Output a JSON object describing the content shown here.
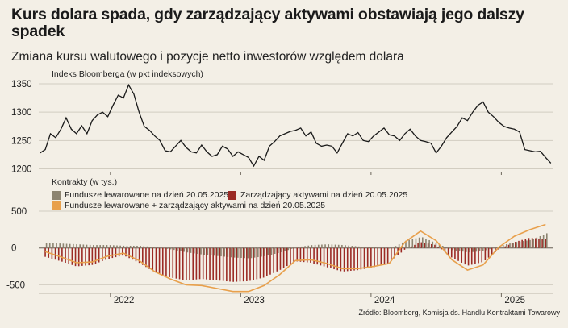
{
  "title": "Kurs dolara spada, gdy zarządzający aktywami obstawiają jego dalszy spadek",
  "subtitle": "Zmiana kursu walutowego i pozycje netto inwestorów względem dolara",
  "source": "Źródło: Bloomberg, Komisja ds. Handlu Kontraktami Towarowy",
  "colors": {
    "background": "#f3efe6",
    "dxy_line": "#1a1a1a",
    "leveraged": "#8c8470",
    "asset_managers": "#9b2a24",
    "combined": "#e8a04c",
    "grid": "#d2cdc1"
  },
  "chart_data": [
    {
      "type": "line",
      "ylabel": "Indeks Bloomberga (w pkt indeksowych)",
      "ylim": [
        1195,
        1360
      ],
      "yticks": [
        1200,
        1250,
        1300,
        1350
      ],
      "grid": true,
      "series": [
        {
          "x": [
            2021.46,
            2021.5,
            2021.54,
            2021.58,
            2021.62,
            2021.66,
            2021.7,
            2021.74,
            2021.78,
            2021.82,
            2021.86,
            2021.9,
            2021.94,
            2021.98,
            2022.02,
            2022.06,
            2022.1,
            2022.14,
            2022.18,
            2022.22,
            2022.26,
            2022.3,
            2022.34,
            2022.38,
            2022.42,
            2022.46,
            2022.5,
            2022.54,
            2022.58,
            2022.62,
            2022.66,
            2022.7,
            2022.74,
            2022.78,
            2022.82,
            2022.86,
            2022.9,
            2022.94,
            2022.98,
            2023.02,
            2023.06,
            2023.1,
            2023.14,
            2023.18,
            2023.22,
            2023.26,
            2023.3,
            2023.34,
            2023.38,
            2023.42,
            2023.46,
            2023.5,
            2023.54,
            2023.58,
            2023.62,
            2023.66,
            2023.7,
            2023.74,
            2023.78,
            2023.82,
            2023.86,
            2023.9,
            2023.94,
            2023.98,
            2024.02,
            2024.06,
            2024.1,
            2024.14,
            2024.18,
            2024.22,
            2024.26,
            2024.3,
            2024.34,
            2024.38,
            2024.42,
            2024.46,
            2024.5,
            2024.54,
            2024.58,
            2024.62,
            2024.66,
            2024.7,
            2024.74,
            2024.78,
            2024.82,
            2024.86,
            2024.9,
            2024.94,
            2024.98,
            2025.02,
            2025.06,
            2025.1,
            2025.14,
            2025.18,
            2025.22,
            2025.26,
            2025.3,
            2025.34,
            2025.38
          ],
          "y": [
            1228,
            1234,
            1262,
            1255,
            1270,
            1290,
            1270,
            1262,
            1276,
            1262,
            1285,
            1295,
            1300,
            1292,
            1312,
            1330,
            1325,
            1348,
            1332,
            1300,
            1275,
            1268,
            1258,
            1250,
            1232,
            1230,
            1240,
            1250,
            1238,
            1230,
            1228,
            1242,
            1230,
            1222,
            1225,
            1240,
            1235,
            1222,
            1230,
            1225,
            1220,
            1205,
            1222,
            1215,
            1240,
            1248,
            1258,
            1262,
            1266,
            1268,
            1272,
            1258,
            1265,
            1245,
            1240,
            1242,
            1240,
            1228,
            1245,
            1262,
            1258,
            1264,
            1250,
            1248,
            1258,
            1265,
            1272,
            1260,
            1258,
            1250,
            1262,
            1270,
            1258,
            1250,
            1248,
            1245,
            1228,
            1240,
            1255,
            1265,
            1275,
            1290,
            1285,
            1300,
            1312,
            1318,
            1300,
            1292,
            1282,
            1275,
            1272,
            1270,
            1265,
            1234,
            1232,
            1230,
            1231,
            1220,
            1210
          ]
        }
      ]
    },
    {
      "type": "bar",
      "title": "Kontrakty (w tys.)",
      "ylim": [
        -550,
        500
      ],
      "yticks": [
        -500,
        0,
        500
      ],
      "xticks": [
        "2022",
        "2023",
        "2024",
        "2025"
      ],
      "xtick_positions": [
        2022,
        2023,
        2024,
        2025
      ],
      "grid": true,
      "legend": "top-left",
      "series": [
        {
          "name": "Fundusze lewarowane na dzień 20.05.2025",
          "x": [
            2021.5,
            2021.62,
            2021.74,
            2021.86,
            2021.98,
            2022.1,
            2022.22,
            2022.34,
            2022.46,
            2022.58,
            2022.7,
            2022.82,
            2022.94,
            2023.06,
            2023.18,
            2023.3,
            2023.42,
            2023.54,
            2023.66,
            2023.78,
            2023.9,
            2024.02,
            2024.14,
            2024.26,
            2024.38,
            2024.5,
            2024.62,
            2024.74,
            2024.86,
            2024.98,
            2025.1,
            2025.22,
            2025.34
          ],
          "y": [
            70,
            60,
            50,
            40,
            40,
            30,
            30,
            10,
            -20,
            -60,
            -90,
            -110,
            -130,
            -140,
            -110,
            -60,
            10,
            40,
            50,
            40,
            20,
            10,
            -10,
            100,
            150,
            60,
            -30,
            -60,
            -40,
            30,
            80,
            110,
            200
          ]
        },
        {
          "name": "Zarządzający aktywami na dzień 20.05.2025",
          "x": [
            2021.5,
            2021.62,
            2021.74,
            2021.86,
            2021.98,
            2022.1,
            2022.22,
            2022.34,
            2022.46,
            2022.58,
            2022.7,
            2022.82,
            2022.94,
            2023.06,
            2023.18,
            2023.3,
            2023.42,
            2023.54,
            2023.66,
            2023.78,
            2023.9,
            2024.02,
            2024.14,
            2024.26,
            2024.38,
            2024.5,
            2024.62,
            2024.74,
            2024.86,
            2024.98,
            2025.1,
            2025.22,
            2025.34
          ],
          "y": [
            -120,
            -180,
            -250,
            -230,
            -150,
            -100,
            -200,
            -330,
            -400,
            -440,
            -420,
            -440,
            -460,
            -450,
            -400,
            -300,
            -180,
            -200,
            -260,
            -320,
            -300,
            -260,
            -200,
            -20,
            80,
            40,
            -130,
            -240,
            -190,
            -20,
            80,
            140,
            120
          ]
        },
        {
          "name": "Fundusze lewarowane + zarządzający aktywami na dzień 20.05.2025",
          "x": [
            2021.5,
            2021.62,
            2021.74,
            2021.86,
            2021.98,
            2022.1,
            2022.22,
            2022.34,
            2022.46,
            2022.58,
            2022.7,
            2022.82,
            2022.94,
            2023.06,
            2023.18,
            2023.3,
            2023.42,
            2023.54,
            2023.66,
            2023.78,
            2023.9,
            2024.02,
            2024.14,
            2024.26,
            2024.38,
            2024.5,
            2024.62,
            2024.74,
            2024.86,
            2024.98,
            2025.1,
            2025.22,
            2025.34
          ],
          "y": [
            -50,
            -120,
            -200,
            -190,
            -110,
            -70,
            -170,
            -320,
            -420,
            -500,
            -510,
            -550,
            -590,
            -590,
            -510,
            -360,
            -170,
            -160,
            -210,
            -280,
            -280,
            -250,
            -210,
            80,
            230,
            100,
            -160,
            -300,
            -230,
            10,
            160,
            250,
            320
          ]
        }
      ]
    }
  ]
}
